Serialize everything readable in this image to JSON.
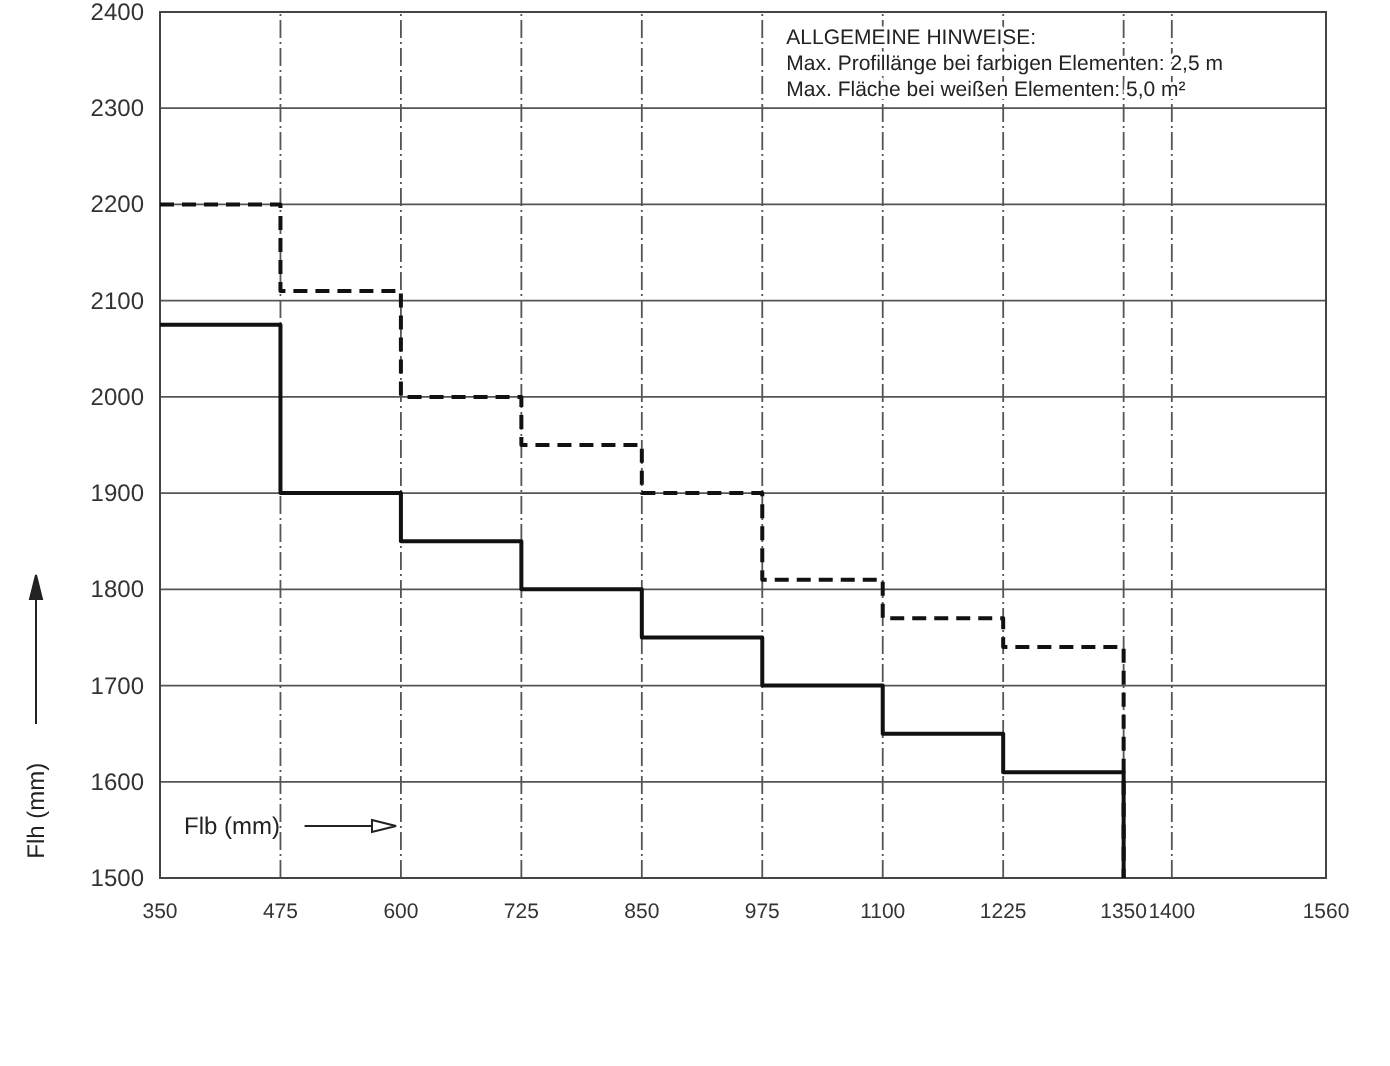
{
  "chart_data": {
    "type": "step",
    "xlabel": "Flb (mm)",
    "ylabel": "Flh (mm)",
    "x": [
      350,
      475,
      600,
      725,
      850,
      975,
      1100,
      1225,
      1350
    ],
    "series": [
      {
        "color": "#111111",
        "line_style": "solid",
        "values": [
          2075,
          1900,
          1850,
          1800,
          1750,
          1700,
          1650,
          1610,
          1500
        ]
      },
      {
        "color": "#111111",
        "line_style": "dashed",
        "values": [
          2200,
          2110,
          2000,
          1950,
          1900,
          1810,
          1770,
          1740,
          1500
        ]
      }
    ],
    "xlim": [
      350,
      1560
    ],
    "xticks": [
      350,
      475,
      600,
      725,
      850,
      975,
      1100,
      1225,
      1350,
      1400,
      1560
    ],
    "ylim": [
      1500,
      2400
    ],
    "yticks": [
      1500,
      1600,
      1700,
      1800,
      1900,
      2000,
      2100,
      2200,
      2300,
      2400
    ],
    "grid": true,
    "annotations": [
      "ALLGEMEINE HINWEISE:",
      "Max. Profillänge bei farbigen Elementen: 2,5 m",
      "Max. Fläche bei weißen Elementen: 5,0 m²"
    ]
  }
}
